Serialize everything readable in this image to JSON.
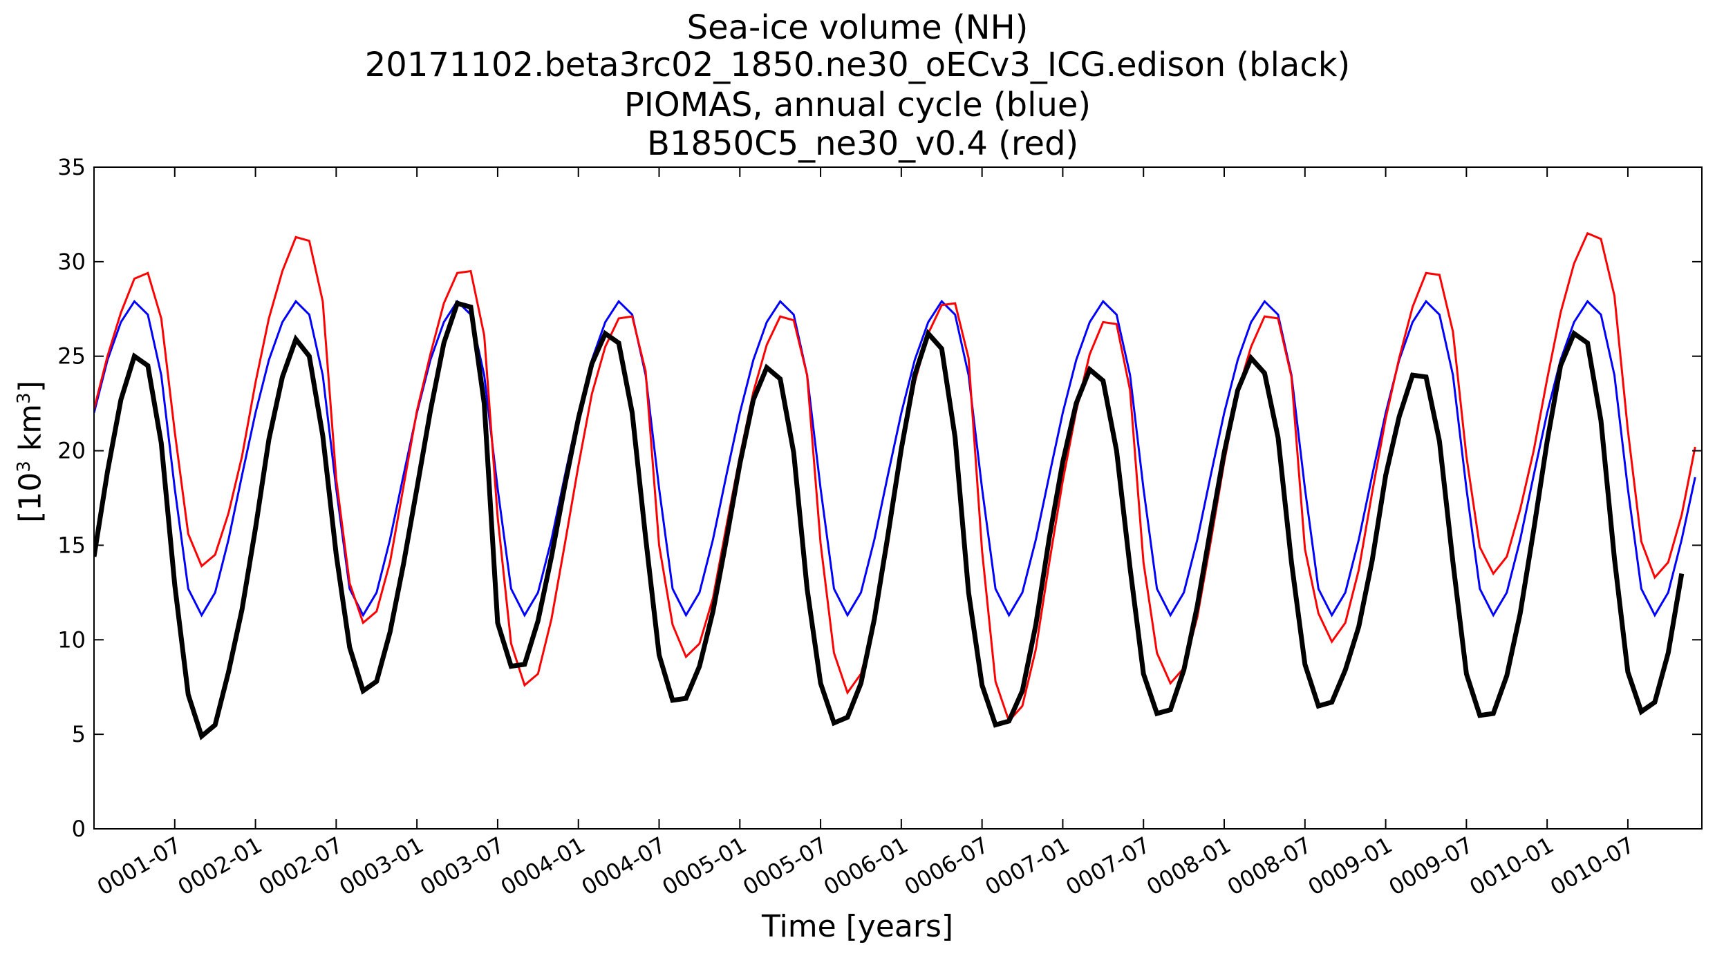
{
  "chart_data": {
    "type": "line",
    "title_lines": [
      "Sea-ice volume (NH)",
      "20171102.beta3rc02_1850.ne30_oECv3_ICG.edison (black)",
      "PIOMAS, annual cycle (blue)",
      " B1850C5_ne30_v0.4 (red)"
    ],
    "xlabel": "Time [years]",
    "ylabel_text": "[10",
    "ylabel_sup1": "3",
    "ylabel_mid": " km",
    "ylabel_sup2": "3",
    "ylabel_end": "]",
    "ylim": [
      0,
      35
    ],
    "yticks": [
      0,
      5,
      10,
      15,
      20,
      25,
      30,
      35
    ],
    "xlim_months": [
      0,
      119.5
    ],
    "xticks": [
      {
        "label": "0001-07",
        "month": 6
      },
      {
        "label": "0002-01",
        "month": 12
      },
      {
        "label": "0002-07",
        "month": 18
      },
      {
        "label": "0003-01",
        "month": 24
      },
      {
        "label": "0003-07",
        "month": 30
      },
      {
        "label": "0004-01",
        "month": 36
      },
      {
        "label": "0004-07",
        "month": 42
      },
      {
        "label": "0005-01",
        "month": 48
      },
      {
        "label": "0005-07",
        "month": 54
      },
      {
        "label": "0006-01",
        "month": 60
      },
      {
        "label": "0006-07",
        "month": 66
      },
      {
        "label": "0007-01",
        "month": 72
      },
      {
        "label": "0007-07",
        "month": 78
      },
      {
        "label": "0008-01",
        "month": 84
      },
      {
        "label": "0008-07",
        "month": 90
      },
      {
        "label": "0009-01",
        "month": 96
      },
      {
        "label": "0009-07",
        "month": 102
      },
      {
        "label": "0010-01",
        "month": 108
      },
      {
        "label": "0010-07",
        "month": 114
      }
    ],
    "grid": false,
    "series": [
      {
        "color": "#0000ff",
        "stroke_width": 3,
        "values": [
          22.0,
          24.8,
          26.8,
          27.9,
          27.2,
          24.0,
          18.0,
          12.7,
          11.3,
          12.5,
          15.3,
          18.7,
          22.0,
          24.8,
          26.8,
          27.9,
          27.2,
          24.0,
          18.0,
          12.7,
          11.3,
          12.5,
          15.3,
          18.7,
          22.0,
          24.8,
          26.8,
          27.9,
          27.2,
          24.0,
          18.0,
          12.7,
          11.3,
          12.5,
          15.3,
          18.7,
          22.0,
          24.8,
          26.8,
          27.9,
          27.2,
          24.0,
          18.0,
          12.7,
          11.3,
          12.5,
          15.3,
          18.7,
          22.0,
          24.8,
          26.8,
          27.9,
          27.2,
          24.0,
          18.0,
          12.7,
          11.3,
          12.5,
          15.3,
          18.7,
          22.0,
          24.8,
          26.8,
          27.9,
          27.2,
          24.0,
          18.0,
          12.7,
          11.3,
          12.5,
          15.3,
          18.7,
          22.0,
          24.8,
          26.8,
          27.9,
          27.2,
          24.0,
          18.0,
          12.7,
          11.3,
          12.5,
          15.3,
          18.7,
          22.0,
          24.8,
          26.8,
          27.9,
          27.2,
          24.0,
          18.0,
          12.7,
          11.3,
          12.5,
          15.3,
          18.7,
          22.0,
          24.8,
          26.8,
          27.9,
          27.2,
          24.0,
          18.0,
          12.7,
          11.3,
          12.5,
          15.3,
          18.7,
          22.0,
          24.8,
          26.8,
          27.9,
          27.2,
          24.0,
          18.0,
          12.7,
          11.3,
          12.5,
          15.3,
          18.6
        ]
      },
      {
        "color": "#ff0000",
        "stroke_width": 3,
        "values": [
          22.2,
          25.0,
          27.3,
          29.1,
          29.4,
          27.0,
          21.0,
          15.6,
          13.9,
          14.5,
          16.7,
          19.7,
          23.6,
          27.0,
          29.5,
          31.3,
          31.1,
          27.9,
          18.5,
          13.0,
          10.9,
          11.5,
          14.1,
          18.1,
          22.1,
          25.1,
          27.8,
          29.4,
          29.5,
          26.1,
          16.5,
          9.8,
          7.6,
          8.2,
          11.1,
          15.1,
          19.2,
          23.0,
          25.5,
          27.0,
          27.1,
          24.2,
          15.0,
          10.8,
          9.1,
          9.8,
          12.2,
          16.0,
          19.7,
          23.1,
          25.6,
          27.1,
          26.9,
          24.0,
          15.1,
          9.3,
          7.2,
          8.2,
          10.9,
          15.0,
          19.8,
          23.6,
          26.2,
          27.7,
          27.8,
          24.9,
          14.7,
          7.8,
          5.7,
          6.5,
          9.5,
          14.1,
          18.4,
          22.1,
          25.1,
          26.8,
          26.7,
          23.2,
          14.1,
          9.3,
          7.7,
          8.5,
          11.2,
          15.2,
          19.4,
          23.1,
          25.5,
          27.1,
          27.0,
          23.9,
          14.8,
          11.4,
          9.9,
          10.9,
          13.7,
          17.8,
          21.7,
          24.9,
          27.6,
          29.4,
          29.3,
          26.3,
          19.7,
          14.9,
          13.5,
          14.4,
          16.9,
          20.0,
          23.8,
          27.3,
          29.9,
          31.5,
          31.2,
          28.2,
          21.1,
          15.2,
          13.3,
          14.1,
          16.6,
          20.2
        ]
      },
      {
        "color": "#000000",
        "stroke_width": 7,
        "values": [
          14.4,
          18.9,
          22.7,
          25.0,
          24.5,
          20.4,
          12.9,
          7.1,
          4.9,
          5.5,
          8.3,
          11.6,
          15.9,
          20.6,
          23.9,
          25.9,
          25.0,
          20.8,
          14.5,
          9.6,
          7.3,
          7.8,
          10.4,
          14.0,
          18.0,
          22.1,
          25.7,
          27.8,
          27.6,
          22.5,
          10.9,
          8.6,
          8.7,
          11.0,
          14.4,
          18.2,
          21.7,
          24.6,
          26.2,
          25.7,
          22.0,
          15.4,
          9.2,
          6.8,
          6.9,
          8.6,
          11.5,
          15.3,
          19.3,
          22.7,
          24.4,
          23.8,
          19.9,
          12.7,
          7.7,
          5.6,
          5.9,
          7.7,
          11.1,
          15.5,
          20.1,
          24.0,
          26.2,
          25.4,
          20.7,
          12.5,
          7.6,
          5.5,
          5.7,
          7.3,
          10.8,
          15.4,
          19.4,
          22.5,
          24.3,
          23.7,
          20.0,
          13.8,
          8.2,
          6.1,
          6.3,
          8.4,
          11.8,
          15.9,
          19.9,
          23.2,
          24.9,
          24.1,
          20.7,
          14.1,
          8.7,
          6.5,
          6.7,
          8.4,
          10.7,
          14.2,
          18.7,
          21.8,
          24.0,
          23.9,
          20.5,
          14.1,
          8.2,
          6.0,
          6.1,
          8.1,
          11.4,
          15.8,
          20.5,
          24.5,
          26.2,
          25.7,
          21.6,
          14.3,
          8.3,
          6.2,
          6.7,
          9.3,
          13.5
        ]
      }
    ]
  }
}
